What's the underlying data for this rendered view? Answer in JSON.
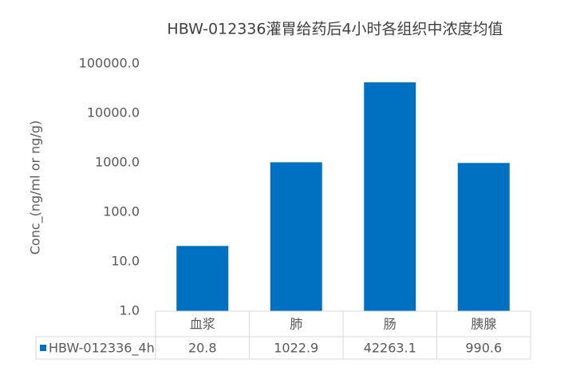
{
  "chart_data": {
    "type": "bar",
    "title": "HBW-012336灌胃给药后4小时各组织中浓度均值",
    "y_label": "Conc_(ng/ml or ng/g)",
    "categories": [
      "血浆",
      "肺",
      "肠",
      "胰腺"
    ],
    "series": [
      {
        "name": "HBW-012336_4h",
        "color": "#0070c0",
        "values": [
          20.8,
          1022.9,
          42263.1,
          990.6
        ]
      }
    ],
    "y_scale": "log",
    "ylim": [
      1,
      100000
    ],
    "yticks": [
      {
        "value": 1,
        "label": "1.0"
      },
      {
        "value": 10,
        "label": "10.0"
      },
      {
        "value": 100,
        "label": "100.0"
      },
      {
        "value": 1000,
        "label": "1000.0"
      },
      {
        "value": 10000,
        "label": "10000.0"
      },
      {
        "value": 100000,
        "label": "100000.0"
      }
    ],
    "grid": false,
    "data_table": true
  }
}
